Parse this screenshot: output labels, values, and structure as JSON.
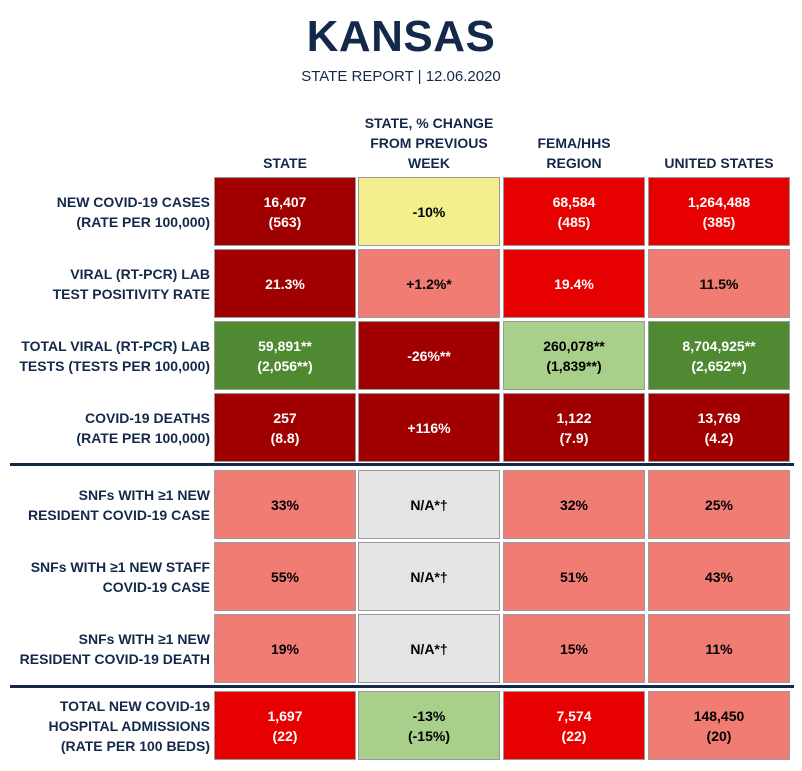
{
  "header": {
    "title": "KANSAS",
    "subtitle": "STATE REPORT | 12.06.2020"
  },
  "columns": [
    "STATE",
    "STATE, % CHANGE\nFROM PREVIOUS\nWEEK",
    "FEMA/HHS\nREGION",
    "UNITED STATES"
  ],
  "colors": {
    "dark_red": "#a00000",
    "red": "#e60000",
    "light_red": "#f07c74",
    "yellow": "#f2ef8c",
    "dark_green": "#4f8a32",
    "light_green": "#a8d08a",
    "gray": "#e4e4e4",
    "navy": "#14294a"
  },
  "rows": [
    {
      "label": "NEW COVID-19 CASES\n(RATE PER 100,000)",
      "cells": [
        {
          "value": "16,407\n(563)",
          "color": "dark_red"
        },
        {
          "value": "-10%",
          "color": "yellow"
        },
        {
          "value": "68,584\n(485)",
          "color": "red"
        },
        {
          "value": "1,264,488\n(385)",
          "color": "red"
        }
      ]
    },
    {
      "label": "VIRAL (RT-PCR) LAB\nTEST POSITIVITY RATE",
      "cells": [
        {
          "value": "21.3%",
          "color": "dark_red"
        },
        {
          "value": "+1.2%*",
          "color": "light_red"
        },
        {
          "value": "19.4%",
          "color": "red"
        },
        {
          "value": "11.5%",
          "color": "light_red"
        }
      ]
    },
    {
      "label": "TOTAL VIRAL (RT-PCR) LAB\nTESTS (TESTS PER 100,000)",
      "cells": [
        {
          "value": "59,891**\n(2,056**)",
          "color": "dark_green"
        },
        {
          "value": "-26%**",
          "color": "dark_red"
        },
        {
          "value": "260,078**\n(1,839**)",
          "color": "light_green"
        },
        {
          "value": "8,704,925**\n(2,652**)",
          "color": "dark_green"
        }
      ]
    },
    {
      "label": "COVID-19 DEATHS\n(RATE PER 100,000)",
      "cells": [
        {
          "value": "257\n(8.8)",
          "color": "dark_red"
        },
        {
          "value": "+116%",
          "color": "dark_red"
        },
        {
          "value": "1,122\n(7.9)",
          "color": "dark_red"
        },
        {
          "value": "13,769\n(4.2)",
          "color": "dark_red"
        }
      ]
    },
    {
      "label": "SNFs WITH ≥1 NEW\nRESIDENT COVID-19 CASE",
      "cells": [
        {
          "value": "33%",
          "color": "light_red"
        },
        {
          "value": "N/A*†",
          "color": "gray"
        },
        {
          "value": "32%",
          "color": "light_red"
        },
        {
          "value": "25%",
          "color": "light_red"
        }
      ]
    },
    {
      "label": "SNFs WITH ≥1 NEW STAFF\nCOVID-19 CASE",
      "cells": [
        {
          "value": "55%",
          "color": "light_red"
        },
        {
          "value": "N/A*†",
          "color": "gray"
        },
        {
          "value": "51%",
          "color": "light_red"
        },
        {
          "value": "43%",
          "color": "light_red"
        }
      ]
    },
    {
      "label": "SNFs WITH ≥1 NEW\nRESIDENT COVID-19 DEATH",
      "cells": [
        {
          "value": "19%",
          "color": "light_red"
        },
        {
          "value": "N/A*†",
          "color": "gray"
        },
        {
          "value": "15%",
          "color": "light_red"
        },
        {
          "value": "11%",
          "color": "light_red"
        }
      ]
    },
    {
      "label": "TOTAL NEW COVID-19\nHOSPITAL ADMISSIONS\n(RATE PER 100 BEDS)",
      "cells": [
        {
          "value": "1,697\n(22)",
          "color": "red"
        },
        {
          "value": "-13%\n(-15%)",
          "color": "light_green"
        },
        {
          "value": "7,574\n(22)",
          "color": "red"
        },
        {
          "value": "148,450\n(20)",
          "color": "light_red"
        }
      ]
    }
  ]
}
